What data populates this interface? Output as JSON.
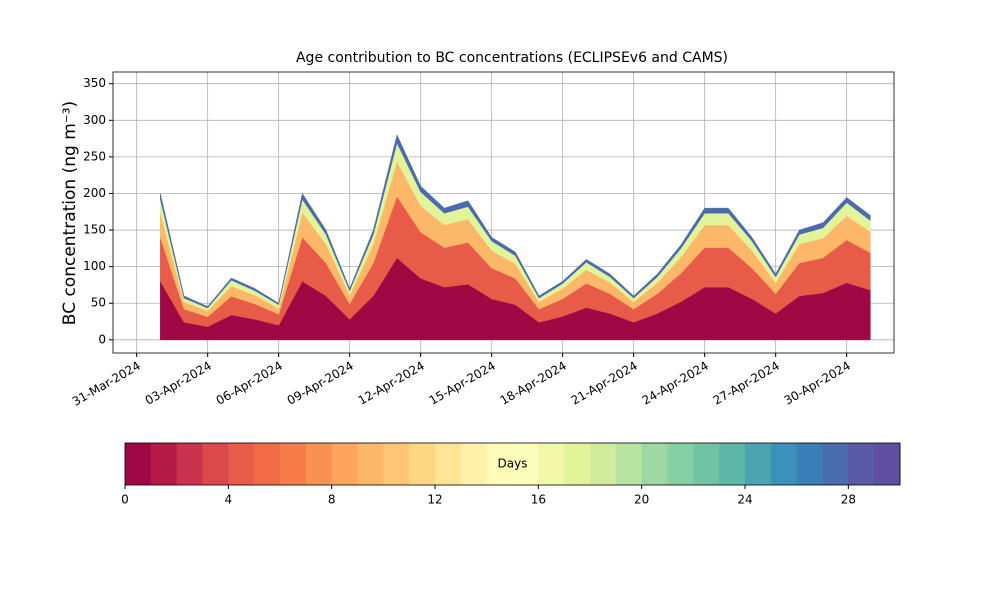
{
  "chart_data": {
    "type": "stacked_area",
    "title": "Age contribution to BC concentrations (ECLIPSEv6 and CAMS)",
    "ylabel": "BC concentration (ng m⁻³)",
    "x": [
      "2024-04-01",
      "2024-04-02",
      "2024-04-03",
      "2024-04-04",
      "2024-04-05",
      "2024-04-06",
      "2024-04-07",
      "2024-04-08",
      "2024-04-09",
      "2024-04-10",
      "2024-04-11",
      "2024-04-12",
      "2024-04-13",
      "2024-04-14",
      "2024-04-15",
      "2024-04-16",
      "2024-04-17",
      "2024-04-18",
      "2024-04-19",
      "2024-04-20",
      "2024-04-21",
      "2024-04-22",
      "2024-04-23",
      "2024-04-24",
      "2024-04-25",
      "2024-04-26",
      "2024-04-27",
      "2024-04-28",
      "2024-04-29",
      "2024-04-30",
      "2024-05-01"
    ],
    "series": [
      {
        "color": "#a00743",
        "values": [
          80,
          24,
          18,
          34,
          28,
          20,
          80,
          60,
          28,
          60,
          112,
          84,
          72,
          76,
          56,
          48,
          24,
          32,
          44,
          36,
          24,
          36,
          52,
          72,
          72,
          56,
          36,
          60,
          64,
          78,
          68
        ]
      },
      {
        "color": "#e85b48",
        "values": [
          60,
          18,
          13.5,
          25.5,
          21,
          15,
          60,
          45,
          21,
          45,
          84,
          63,
          54,
          57,
          42,
          36,
          18,
          24,
          33,
          27,
          18,
          27,
          39,
          54,
          54,
          42,
          27,
          45,
          48,
          58.5,
          51
        ]
      },
      {
        "color": "#fdb768",
        "values": [
          34,
          10,
          8,
          14,
          12,
          8,
          34,
          26,
          12,
          26,
          48,
          36,
          31,
          32,
          24,
          20,
          10,
          14,
          19,
          15,
          10,
          15,
          22,
          31,
          31,
          24,
          15,
          26,
          27,
          33,
          29
        ]
      },
      {
        "color": "#e2f39a",
        "values": [
          18,
          5,
          4,
          8,
          6,
          5,
          18,
          13,
          6,
          13,
          25,
          19,
          16,
          17,
          13,
          11,
          5,
          7,
          10,
          8,
          5,
          8,
          12,
          16,
          16,
          13,
          8,
          13,
          14,
          18,
          15
        ]
      },
      {
        "color": "#4a6cae",
        "values": [
          8,
          3,
          2,
          3,
          3,
          2,
          8,
          6,
          3,
          6,
          11,
          8,
          7,
          8,
          5,
          5,
          3,
          3,
          4,
          4,
          3,
          4,
          5,
          7,
          7,
          5,
          4,
          6,
          7,
          7,
          7
        ]
      }
    ],
    "xlim": [
      "2024-03-30",
      "2024-05-02"
    ],
    "xticks": [
      {
        "value": "2024-03-31",
        "label": "31-Mar-2024"
      },
      {
        "value": "2024-04-03",
        "label": "03-Apr-2024"
      },
      {
        "value": "2024-04-06",
        "label": "06-Apr-2024"
      },
      {
        "value": "2024-04-09",
        "label": "09-Apr-2024"
      },
      {
        "value": "2024-04-12",
        "label": "12-Apr-2024"
      },
      {
        "value": "2024-04-15",
        "label": "15-Apr-2024"
      },
      {
        "value": "2024-04-18",
        "label": "18-Apr-2024"
      },
      {
        "value": "2024-04-21",
        "label": "21-Apr-2024"
      },
      {
        "value": "2024-04-24",
        "label": "24-Apr-2024"
      },
      {
        "value": "2024-04-27",
        "label": "27-Apr-2024"
      },
      {
        "value": "2024-04-30",
        "label": "30-Apr-2024"
      }
    ],
    "ylim": [
      -18,
      366
    ],
    "yticks": [
      0,
      50,
      100,
      150,
      200,
      250,
      300,
      350
    ],
    "grid": true,
    "colorbar": {
      "label": "Days",
      "lim": [
        0,
        30
      ],
      "ticks": [
        0,
        4,
        8,
        12,
        16,
        20,
        24,
        28
      ],
      "colors": [
        "#a00743",
        "#b61a47",
        "#cb334c",
        "#dc494a",
        "#e85b48",
        "#f16c44",
        "#f67c4a",
        "#f99153",
        "#fca55d",
        "#fdb768",
        "#fdc776",
        "#fed684",
        "#fee593",
        "#fff1a8",
        "#fffbb9",
        "#fbfdba",
        "#f1f9a9",
        "#e2f39a",
        "#cfeb9c",
        "#b9e3a0",
        "#a0d8a4",
        "#87cfa4",
        "#70c4a4",
        "#5cb7a9",
        "#4ba4b0",
        "#3b92b9",
        "#3a7eb8",
        "#4a6cae",
        "#5b5aa5",
        "#5e4fa2"
      ]
    }
  }
}
